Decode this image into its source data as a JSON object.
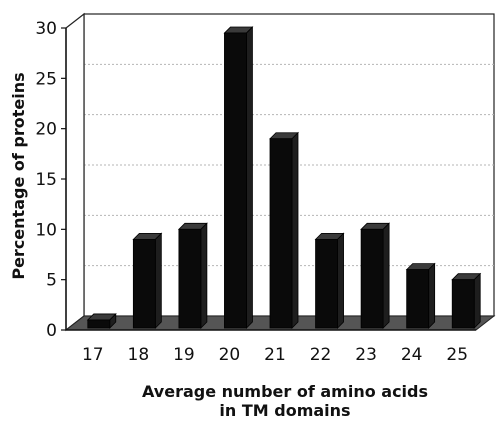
{
  "chart_data": {
    "type": "bar",
    "categories": [
      "17",
      "18",
      "19",
      "20",
      "21",
      "22",
      "23",
      "24",
      "25"
    ],
    "values": [
      1,
      9,
      10,
      29.5,
      19,
      9,
      10,
      6,
      5
    ],
    "title": "",
    "xlabel_line1": "Average number of amino acids",
    "xlabel_line2": "in TM domains",
    "ylabel": "Percentage of proteins",
    "ylim": [
      0,
      30
    ],
    "yticks": [
      0,
      5,
      10,
      15,
      20,
      25,
      30
    ],
    "grid": true,
    "bar_color": "#0a0a0a",
    "floor_color": "#555555",
    "grid_color": "#b5b5b5"
  }
}
